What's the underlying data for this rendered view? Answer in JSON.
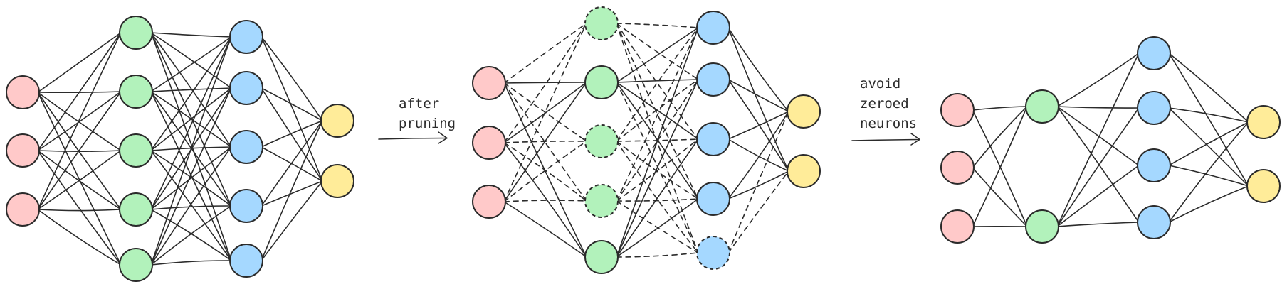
{
  "colors": {
    "input": "#ffc9c9",
    "hidden1": "#b2f2bb",
    "hidden2": "#a5d8ff",
    "output": "#ffec99",
    "stroke": "#2b2b2b"
  },
  "stages": [
    {
      "name": "original-network",
      "layers": [
        {
          "role": "input",
          "count": 3,
          "zeroed": []
        },
        {
          "role": "hidden1",
          "count": 5,
          "zeroed": []
        },
        {
          "role": "hidden2",
          "count": 5,
          "zeroed": []
        },
        {
          "role": "output",
          "count": 2,
          "zeroed": []
        }
      ]
    },
    {
      "name": "pruned-network",
      "layers": [
        {
          "role": "input",
          "count": 3,
          "zeroed": []
        },
        {
          "role": "hidden1",
          "count": 5,
          "zeroed": [
            0,
            2,
            3
          ]
        },
        {
          "role": "hidden2",
          "count": 5,
          "zeroed": [
            4
          ]
        },
        {
          "role": "output",
          "count": 2,
          "zeroed": []
        }
      ]
    },
    {
      "name": "compact-network",
      "layers": [
        {
          "role": "input",
          "count": 3,
          "zeroed": []
        },
        {
          "role": "hidden1",
          "count": 2,
          "zeroed": []
        },
        {
          "role": "hidden2",
          "count": 4,
          "zeroed": []
        },
        {
          "role": "output",
          "count": 2,
          "zeroed": []
        }
      ]
    }
  ],
  "transitions": [
    {
      "lines": [
        "after",
        "pruning"
      ]
    },
    {
      "lines": [
        "avoid",
        "zeroed",
        "neurons"
      ]
    }
  ]
}
